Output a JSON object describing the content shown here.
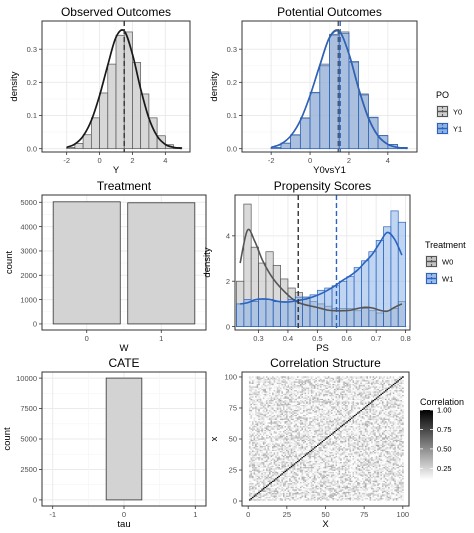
{
  "chart_data": [
    {
      "type": "bar",
      "title": "Observed Outcomes",
      "xlabel": "Y",
      "ylabel": "density",
      "x_ticks": [
        "-2",
        "0",
        "2",
        "4"
      ],
      "y_ticks": [
        "0.0",
        "0.1",
        "0.2",
        "0.3"
      ],
      "xlim": [
        -3.5,
        5.5
      ],
      "ylim": [
        -0.01,
        0.385
      ],
      "grid": true,
      "bin_width": 0.5,
      "bin_centers": [
        -1.75,
        -1.25,
        -0.75,
        -0.25,
        0.25,
        0.75,
        1.25,
        1.75,
        2.25,
        2.75,
        3.25,
        3.75,
        4.25,
        4.75
      ],
      "values": [
        0.004,
        0.016,
        0.042,
        0.093,
        0.168,
        0.255,
        0.342,
        0.352,
        0.26,
        0.165,
        0.093,
        0.039,
        0.012,
        0.004
      ],
      "density_x": [
        -2.0,
        -1.5,
        -1.0,
        -0.5,
        0.0,
        0.5,
        1.0,
        1.5,
        2.0,
        2.5,
        3.0,
        3.5,
        4.0,
        4.5,
        5.0
      ],
      "density_y": [
        0.004,
        0.014,
        0.038,
        0.085,
        0.16,
        0.252,
        0.336,
        0.355,
        0.285,
        0.18,
        0.092,
        0.038,
        0.013,
        0.004,
        0.001
      ],
      "vline": 1.5,
      "colors": {
        "fill": "#d3d3d3",
        "line": "#1a1a1a"
      }
    },
    {
      "type": "bar",
      "title": "Potential Outcomes",
      "xlabel": "Y0vsY1",
      "ylabel": "density",
      "x_ticks": [
        "-2",
        "0",
        "2",
        "4"
      ],
      "y_ticks": [
        "0.0",
        "0.1",
        "0.2",
        "0.3"
      ],
      "xlim": [
        -3.5,
        5.5
      ],
      "ylim": [
        -0.01,
        0.385
      ],
      "grid": true,
      "bin_width": 0.5,
      "bin_centers": [
        -1.75,
        -1.25,
        -0.75,
        -0.25,
        0.25,
        0.75,
        1.25,
        1.75,
        2.25,
        2.75,
        3.25,
        3.75,
        4.25,
        4.75
      ],
      "series": [
        {
          "name": "Y0",
          "values": [
            0.004,
            0.016,
            0.042,
            0.093,
            0.168,
            0.255,
            0.342,
            0.352,
            0.26,
            0.165,
            0.093,
            0.039,
            0.012,
            0.004
          ],
          "density_y": [
            0.004,
            0.014,
            0.038,
            0.085,
            0.16,
            0.252,
            0.336,
            0.355,
            0.285,
            0.18,
            0.092,
            0.038,
            0.013,
            0.004,
            0.001
          ],
          "color": "#555555",
          "fill": "#c8c8c8"
        },
        {
          "name": "Y1",
          "values": [
            0.004,
            0.017,
            0.041,
            0.092,
            0.17,
            0.25,
            0.345,
            0.348,
            0.263,
            0.162,
            0.095,
            0.04,
            0.013,
            0.004
          ],
          "density_y": [
            0.004,
            0.014,
            0.038,
            0.085,
            0.16,
            0.25,
            0.334,
            0.353,
            0.287,
            0.182,
            0.094,
            0.039,
            0.013,
            0.004,
            0.001
          ],
          "color": "#2a63c0",
          "fill": "#7ea6dd"
        }
      ],
      "density_x": [
        -2.0,
        -1.5,
        -1.0,
        -0.5,
        0.0,
        0.5,
        1.0,
        1.5,
        2.0,
        2.5,
        3.0,
        3.5,
        4.0,
        4.5,
        5.0
      ],
      "vlines": [
        {
          "x": 1.45,
          "color": "#555555"
        },
        {
          "x": 1.55,
          "color": "#2a63c0"
        }
      ],
      "legend": {
        "title": "PO",
        "entries": [
          "Y0",
          "Y1"
        ],
        "position": "right"
      }
    },
    {
      "type": "bar",
      "title": "Treatment",
      "xlabel": "W",
      "ylabel": "count",
      "categories": [
        "0",
        "1"
      ],
      "values": [
        5020,
        4980
      ],
      "y_ticks": [
        "0",
        "1000",
        "2000",
        "3000",
        "4000",
        "5000"
      ],
      "ylim": [
        -250,
        5300
      ],
      "grid": true,
      "colors": {
        "fill": "#d3d3d3",
        "line": "#333333"
      }
    },
    {
      "type": "bar",
      "title": "Propensity Scores",
      "xlabel": "PS",
      "ylabel": "density",
      "x_ticks": [
        "0.3",
        "0.4",
        "0.5",
        "0.6",
        "0.7",
        "0.8"
      ],
      "y_ticks": [
        "0",
        "2",
        "4"
      ],
      "xlim": [
        0.22,
        0.815
      ],
      "ylim": [
        -0.15,
        5.8
      ],
      "grid": true,
      "bin_width": 0.025,
      "bin_centers": [
        0.2375,
        0.2625,
        0.2875,
        0.3125,
        0.3375,
        0.3625,
        0.3875,
        0.4125,
        0.4375,
        0.4625,
        0.4875,
        0.5125,
        0.5375,
        0.5625,
        0.5875,
        0.6125,
        0.6375,
        0.6625,
        0.6875,
        0.7125,
        0.7375,
        0.7625,
        0.7875
      ],
      "series": [
        {
          "name": "W0",
          "values": [
            2.0,
            5.4,
            3.5,
            2.8,
            3.3,
            2.7,
            2.1,
            1.7,
            1.5,
            1.3,
            1.1,
            1.0,
            0.9,
            0.8,
            0.8,
            0.8,
            0.7,
            0.8,
            0.7,
            0.6,
            0.7,
            0.8,
            1.1
          ],
          "density_y": [
            2.8,
            4.25,
            3.75,
            2.95,
            2.35,
            1.9,
            1.55,
            1.25,
            1.05,
            0.95,
            0.88,
            0.8,
            0.72,
            0.7,
            0.7,
            0.72,
            0.8,
            0.85,
            0.82,
            0.72,
            0.68,
            0.85,
            1.0
          ],
          "color": "#555555",
          "fill": "#bbbbbb"
        },
        {
          "name": "W1",
          "values": [
            1.0,
            1.2,
            1.1,
            1.2,
            1.2,
            1.1,
            1.1,
            1.2,
            1.3,
            1.3,
            1.4,
            1.6,
            1.7,
            1.8,
            2.0,
            2.2,
            2.6,
            2.9,
            3.3,
            3.8,
            4.4,
            5.1,
            4.6
          ],
          "density_y": [
            1.0,
            1.05,
            1.18,
            1.22,
            1.2,
            1.12,
            1.08,
            1.1,
            1.16,
            1.22,
            1.32,
            1.45,
            1.62,
            1.82,
            2.05,
            2.25,
            2.5,
            2.85,
            3.2,
            3.7,
            4.15,
            3.85,
            3.15
          ],
          "color": "#2a63c0",
          "fill": "#8db3e6"
        }
      ],
      "vlines": [
        {
          "x": 0.435,
          "color": "#333333"
        },
        {
          "x": 0.565,
          "color": "#2a63c0"
        }
      ],
      "legend": {
        "title": "Treatment",
        "entries": [
          "W0",
          "W1"
        ],
        "position": "right"
      }
    },
    {
      "type": "bar",
      "title": "CATE",
      "xlabel": "tau",
      "ylabel": "count",
      "x_ticks": [
        "-1",
        "0",
        "1"
      ],
      "y_ticks": [
        "0",
        "2500",
        "5000",
        "7500",
        "10000"
      ],
      "xlim": [
        -1.15,
        1.15
      ],
      "ylim": [
        -500,
        10500
      ],
      "grid": true,
      "bins": [
        {
          "x0": -0.25,
          "x1": 0.25,
          "count": 10000
        }
      ],
      "colors": {
        "fill": "#d3d3d3",
        "line": "#333333"
      }
    },
    {
      "type": "heatmap",
      "title": "Correlation Structure",
      "xlabel": "X",
      "ylabel": "x",
      "x_ticks": [
        "0",
        "25",
        "50",
        "75",
        "100"
      ],
      "y_ticks": [
        "0",
        "25",
        "50",
        "75",
        "100"
      ],
      "xlim": [
        -4,
        104
      ],
      "ylim": [
        -4,
        104
      ],
      "n": 100,
      "diagonal_value": 1.0,
      "off_diagonal_range": [
        0.0,
        0.35
      ],
      "legend": {
        "title": "Correlation",
        "ticks": [
          "1.00",
          "0.75",
          "0.50",
          "0.25"
        ],
        "position": "right"
      }
    }
  ]
}
